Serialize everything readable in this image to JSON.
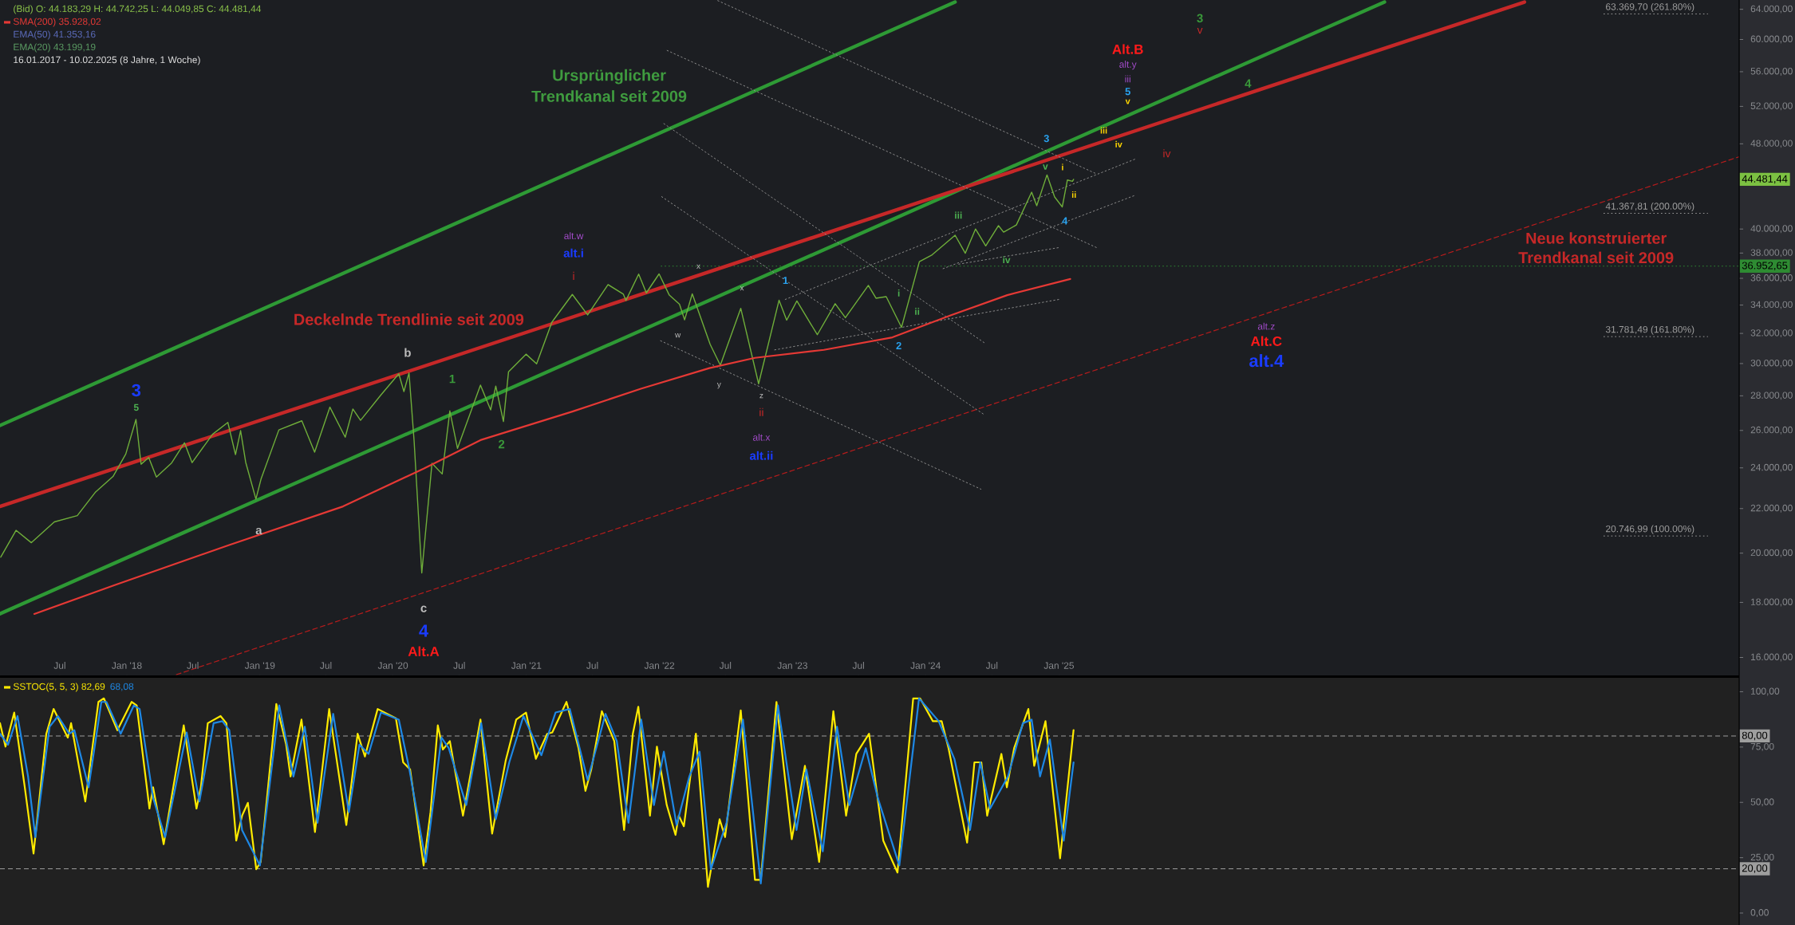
{
  "chart_data": [
    {
      "type": "line",
      "title": "(Bid)  O: 44.183,29  H: 44.742,25  L: 44.049,85  C: 44.481,44",
      "subtitle": "16.01.2017 - 10.02.2025  (8 Jahre, 1 Woche)",
      "xlim": [
        "2017-01-18",
        "2030-02-10"
      ],
      "ylim": [
        15400,
        65300
      ],
      "log": true,
      "legend": "top left",
      "xticks": [
        {
          "value": "2017-07-01",
          "label": "Jul"
        },
        {
          "value": "2018-01-01",
          "label": "Jan '18"
        },
        {
          "value": "2018-07-01",
          "label": "Jul"
        },
        {
          "value": "2019-01-01",
          "label": "Jan '19"
        },
        {
          "value": "2019-07-01",
          "label": "Jul"
        },
        {
          "value": "2020-01-01",
          "label": "Jan '20"
        },
        {
          "value": "2020-07-01",
          "label": "Jul"
        },
        {
          "value": "2021-01-01",
          "label": "Jan '21"
        },
        {
          "value": "2021-07-01",
          "label": "Jul"
        },
        {
          "value": "2022-01-01",
          "label": "Jan '22"
        },
        {
          "value": "2022-07-01",
          "label": "Jul"
        },
        {
          "value": "2023-01-01",
          "label": "Jan '23"
        },
        {
          "value": "2023-07-01",
          "label": "Jul"
        },
        {
          "value": "2024-01-01",
          "label": "Jan '24"
        },
        {
          "value": "2024-07-01",
          "label": "Jul"
        },
        {
          "value": "2025-01-01",
          "label": "Jan '25"
        }
      ],
      "yticks": [
        {
          "value": 16000,
          "label": "16.000,00"
        },
        {
          "value": 18000,
          "label": "18.000,00"
        },
        {
          "value": 20000,
          "label": "20.000,00"
        },
        {
          "value": 22000,
          "label": "22.000,00"
        },
        {
          "value": 24000,
          "label": "24.000,00"
        },
        {
          "value": 26000,
          "label": "26.000,00"
        },
        {
          "value": 28000,
          "label": "28.000,00"
        },
        {
          "value": 30000,
          "label": "30.000,00"
        },
        {
          "value": 32000,
          "label": "32.000,00"
        },
        {
          "value": 34000,
          "label": "34.000,00"
        },
        {
          "value": 36000,
          "label": "36.000,00"
        },
        {
          "value": 38000,
          "label": "38.000,00"
        },
        {
          "value": 40000,
          "label": "40.000,00"
        },
        {
          "value": 48000,
          "label": "48.000,00"
        },
        {
          "value": 52000,
          "label": "52.000,00"
        },
        {
          "value": 56000,
          "label": "56.000,00"
        },
        {
          "value": 60000,
          "label": "60.000,00"
        },
        {
          "value": 64000,
          "label": "64.000,00"
        }
      ],
      "series": [
        {
          "color": "#6fae3a",
          "x": [
            "2017-01-20",
            "2017-03-03",
            "2017-04-14",
            "2017-06-16",
            "2017-08-18",
            "2017-10-06",
            "2017-11-24",
            "2017-12-29",
            "2018-01-26",
            "2018-02-09",
            "2018-03-02",
            "2018-03-23",
            "2018-05-04",
            "2018-06-08",
            "2018-06-29",
            "2018-08-24",
            "2018-10-05",
            "2018-10-26",
            "2018-11-09",
            "2018-11-23",
            "2018-12-21",
            "2019-01-04",
            "2019-02-22",
            "2019-04-26",
            "2019-05-31",
            "2019-07-12",
            "2019-08-23",
            "2019-09-13",
            "2019-10-04",
            "2019-11-29",
            "2020-01-17",
            "2020-01-31",
            "2020-02-14",
            "2020-02-28",
            "2020-03-20",
            "2020-04-17",
            "2020-05-15",
            "2020-06-05",
            "2020-06-26",
            "2020-08-28",
            "2020-09-25",
            "2020-10-09",
            "2020-10-30",
            "2020-11-13",
            "2020-12-31",
            "2021-01-29",
            "2021-03-12",
            "2021-05-07",
            "2021-06-18",
            "2021-08-13",
            "2021-09-24",
            "2021-10-01",
            "2021-11-05",
            "2021-11-26",
            "2021-12-31",
            "2022-01-28",
            "2022-02-25",
            "2022-03-11",
            "2022-04-01",
            "2022-05-20",
            "2022-06-17",
            "2022-08-12",
            "2022-09-30",
            "2022-11-25",
            "2022-12-16",
            "2023-01-13",
            "2023-03-10",
            "2023-04-28",
            "2023-05-26",
            "2023-07-28",
            "2023-08-18",
            "2023-09-15",
            "2023-10-27",
            "2023-12-15",
            "2024-01-19",
            "2024-03-22",
            "2024-04-19",
            "2024-05-17",
            "2024-06-14",
            "2024-07-19",
            "2024-08-02",
            "2024-09-06",
            "2024-10-18",
            "2024-11-01",
            "2024-11-29",
            "2024-12-20",
            "2025-01-10",
            "2025-01-24",
            "2025-02-07",
            "2025-02-10"
          ],
          "values": [
            19830,
            21000,
            20450,
            21380,
            21670,
            22770,
            23560,
            24720,
            26620,
            24190,
            24540,
            23530,
            24260,
            25320,
            24270,
            25790,
            26450,
            24690,
            25990,
            24290,
            22450,
            23430,
            26030,
            26540,
            24820,
            27330,
            25630,
            27220,
            26570,
            28050,
            29350,
            28260,
            29400,
            25410,
            19170,
            24240,
            23690,
            27110,
            25020,
            28650,
            27170,
            28590,
            26500,
            29480,
            30610,
            29980,
            32780,
            34780,
            33290,
            35520,
            34800,
            34330,
            36330,
            34900,
            36340,
            34730,
            34060,
            32940,
            34820,
            31260,
            29890,
            33760,
            28730,
            34350,
            32920,
            34300,
            31910,
            34100,
            33090,
            35460,
            34500,
            34620,
            32420,
            37310,
            37860,
            39480,
            37990,
            40000,
            38590,
            40290,
            39740,
            40350,
            43280,
            42050,
            44910,
            42840,
            41940,
            44420,
            44300,
            44481.44
          ]
        },
        {
          "name": "SMA(200)  35.928,02",
          "color": "#e53935",
          "x": [
            "2017-04-22",
            "2017-11-27",
            "2018-10-07",
            "2019-08-17",
            "2020-03-25",
            "2020-08-28",
            "2021-05-07",
            "2021-11-11",
            "2022-05-18",
            "2022-09-20",
            "2023-03-28",
            "2023-10-02",
            "2024-03-08",
            "2024-08-12",
            "2025-02-01"
          ],
          "values": [
            17560,
            18670,
            20340,
            22100,
            23960,
            25470,
            27070,
            28430,
            29710,
            30370,
            30890,
            31730,
            33240,
            34730,
            35950
          ]
        },
        {
          "color": "#2e9a35",
          "x": [
            "2017-01-18",
            "2024-03-22"
          ],
          "values": [
            26280,
            65000
          ]
        },
        {
          "color": "#2e9a35",
          "x": [
            "2017-01-18",
            "2027-06-13"
          ],
          "values": [
            17570,
            65000
          ]
        },
        {
          "color": "#c62828",
          "x": [
            "2017-01-18",
            "2028-07-01"
          ],
          "values": [
            22100,
            65000
          ]
        },
        {
          "color": "#b71c1c",
          "line_style": "dashed",
          "x": [
            "2018-05-17",
            "2030-02-10"
          ],
          "values": [
            15424,
            46690
          ]
        },
        {
          "color": "#8a8a8a",
          "line_style": "dotted",
          "x": [
            "2022-06-10",
            "2025-04-14"
          ],
          "values": [
            65200,
            45010
          ]
        },
        {
          "color": "#8a8a8a",
          "line_style": "dotted",
          "x": [
            "2022-01-22",
            "2025-04-14"
          ],
          "values": [
            58610,
            38450
          ]
        },
        {
          "color": "#8a8a8a",
          "line_style": "dotted",
          "x": [
            "2022-01-13",
            "2024-06-11"
          ],
          "values": [
            50120,
            31350
          ]
        },
        {
          "color": "#8a8a8a",
          "line_style": "dotted",
          "x": [
            "2022-01-07",
            "2024-06-11"
          ],
          "values": [
            42870,
            26880
          ]
        },
        {
          "color": "#8a8a8a",
          "line_style": "dotted",
          "x": [
            "2022-01-04",
            "2024-06-01"
          ],
          "values": [
            31500,
            22930
          ]
        },
        {
          "color": "#8a8a8a",
          "line_style": "dotted",
          "x": [
            "2022-11-13",
            "2025-01-01"
          ],
          "values": [
            30890,
            34410
          ]
        },
        {
          "color": "#8a8a8a",
          "line_style": "dotted",
          "x": [
            "2022-12-12",
            "2025-07-30"
          ],
          "values": [
            34410,
            46470
          ]
        },
        {
          "color": "#8a8a8a",
          "line_style": "dotted",
          "x": [
            "2024-02-18",
            "2025-07-27"
          ],
          "values": [
            36750,
            42970
          ]
        },
        {
          "color": "#8a8a8a",
          "line_style": "dotted",
          "x": [
            "2024-04-01",
            "2025-01-01"
          ],
          "values": [
            37110,
            38450
          ]
        }
      ],
      "ref_lines": [
        {
          "axis": "y",
          "value": 63369.7,
          "label": "63.369,70 (261.80%)",
          "color": "#9e9e9e",
          "line_style": "dotted"
        },
        {
          "axis": "y",
          "value": 41367.81,
          "label": "41.367,81 (200.00%)",
          "color": "#9e9e9e",
          "line_style": "dotted"
        },
        {
          "axis": "y",
          "value": 31781.49,
          "label": "31.781,49 (161.80%)",
          "color": "#9e9e9e",
          "line_style": "dotted"
        },
        {
          "axis": "y",
          "value": 20746.99,
          "label": "20.746,99 (100.00%)",
          "color": "#9e9e9e",
          "line_style": "dotted"
        },
        {
          "axis": "y",
          "value": 36952.65,
          "label": "36.952,65",
          "color": "#2e8b32",
          "line_style": "dotted"
        }
      ],
      "annotations": [
        "EMA(50)  41.353,16",
        "EMA(20)  43.199,19",
        "3",
        "5",
        "a",
        "b",
        "c",
        "4",
        "Alt.A",
        "1",
        "2",
        "alt.w",
        "alt.i",
        "i",
        "x",
        "w",
        "x",
        "y",
        "z",
        "ii",
        "alt.x",
        "alt.ii",
        "1",
        "2",
        "i",
        "ii",
        "iii",
        "iv",
        "v",
        "3",
        "i",
        "ii",
        "4",
        "iii",
        "iv",
        "iv",
        "Alt.B",
        "alt.y",
        "iii",
        "5",
        "v",
        "3",
        "v",
        "4",
        "alt.z",
        "Alt.C",
        "alt.4",
        "Ursprünglicher",
        "Trendkanal seit 2009",
        "Deckelnde Trendlinie seit 2009",
        "Neue konstruierter",
        "Trendkanal seit 2009",
        "44.481,44"
      ]
    },
    {
      "type": "line",
      "xlim": [
        "2017-01-18",
        "2030-02-10"
      ],
      "ylim": [
        -5.4,
        106.3
      ],
      "tick_labels": "y",
      "legend": "top left",
      "yticks": [
        {
          "value": 0,
          "label": "0,00"
        },
        {
          "value": 25,
          "label": "25,00"
        },
        {
          "value": 50,
          "label": "50,00"
        },
        {
          "value": 75,
          "label": "75,00"
        },
        {
          "value": 100,
          "label": "100,00"
        }
      ],
      "series": [
        {
          "name": "SSTOC(5, 5, 3)  82,69",
          "color": "#ffeb00",
          "x": [
            "2017-01-18",
            "2017-02-02",
            "2017-02-26",
            "2017-03-27",
            "2017-04-20",
            "2017-05-25",
            "2017-06-14",
            "2017-07-23",
            "2017-08-01",
            "2017-09-09",
            "2017-10-15",
            "2017-10-30",
            "2017-12-06",
            "2018-01-14",
            "2018-01-28",
            "2018-03-04",
            "2018-03-14",
            "2018-04-12",
            "2018-06-06",
            "2018-07-11",
            "2018-07-23",
            "2018-08-11",
            "2018-09-15",
            "2018-10-01",
            "2018-10-28",
            "2018-11-13",
            "2018-11-29",
            "2018-12-22",
            "2019-01-03",
            "2019-02-15",
            "2019-03-14",
            "2019-03-26",
            "2019-04-25",
            "2019-06-01",
            "2019-07-10",
            "2019-08-26",
            "2019-09-26",
            "2019-10-16",
            "2019-11-20",
            "2020-01-09",
            "2020-01-29",
            "2020-02-17",
            "2020-03-25",
            "2020-04-13",
            "2020-05-03",
            "2020-05-17",
            "2020-06-05",
            "2020-07-11",
            "2020-08-28",
            "2020-09-29",
            "2020-11-05",
            "2020-12-04",
            "2020-12-31",
            "2021-01-27",
            "2021-02-27",
            "2021-03-13",
            "2021-04-21",
            "2021-05-24",
            "2021-06-12",
            "2021-06-28",
            "2021-07-27",
            "2021-08-30",
            "2021-09-26",
            "2021-10-20",
            "2021-11-04",
            "2021-12-06",
            "2021-12-25",
            "2022-01-21",
            "2022-02-14",
            "2022-02-23",
            "2022-03-09",
            "2022-04-11",
            "2022-05-14",
            "2022-06-15",
            "2022-06-30",
            "2022-08-12",
            "2022-09-20",
            "2022-10-06",
            "2022-11-18",
            "2022-12-30",
            "2023-02-04",
            "2023-03-15",
            "2023-04-23",
            "2023-05-28",
            "2023-06-25",
            "2023-07-30",
            "2023-09-07",
            "2023-10-16",
            "2023-11-28",
            "2023-12-17",
            "2024-01-21",
            "2024-02-14",
            "2024-03-04",
            "2024-04-24",
            "2024-05-14",
            "2024-06-02",
            "2024-06-18",
            "2024-07-27",
            "2024-08-11",
            "2024-08-31",
            "2024-10-09",
            "2024-10-25",
            "2024-11-25",
            "2025-01-04",
            "2025-02-10"
          ],
          "values": [
            85.8,
            75.2,
            90.6,
            56.8,
            26.9,
            81.0,
            92.2,
            79.3,
            85.8,
            50.4,
            95.4,
            97.0,
            82.6,
            95.4,
            93.8,
            47.2,
            56.8,
            31.1,
            84.8,
            47.2,
            56.8,
            85.8,
            89.0,
            85.8,
            32.7,
            44.0,
            49.8,
            19.8,
            23.1,
            94.5,
            76.1,
            61.7,
            87.4,
            36.6,
            92.2,
            39.8,
            81.0,
            70.7,
            92.2,
            88.0,
            68.1,
            64.9,
            21.5,
            45.6,
            84.8,
            73.9,
            77.7,
            44.0,
            87.4,
            35.9,
            68.7,
            87.4,
            90.6,
            69.7,
            81.0,
            81.6,
            95.4,
            74.5,
            55.2,
            64.9,
            91.2,
            77.7,
            37.5,
            81.0,
            93.2,
            44.0,
            75.2,
            48.8,
            35.3,
            44.0,
            39.2,
            81.0,
            11.8,
            42.4,
            34.3,
            91.6,
            15.0,
            15.0,
            95.4,
            33.4,
            66.5,
            23.1,
            91.2,
            44.0,
            71.9,
            81.0,
            32.7,
            18.3,
            97.0,
            97.0,
            86.7,
            86.7,
            74.5,
            31.8,
            68.1,
            68.1,
            44.0,
            71.9,
            56.8,
            74.5,
            92.2,
            66.5,
            86.7,
            24.7,
            82.7
          ]
        },
        {
          "name": "68,08",
          "color": "#1e88e5",
          "x": [
            "2017-01-18",
            "2017-02-09",
            "2017-03-07",
            "2017-04-05",
            "2017-04-25",
            "2017-06-03",
            "2017-06-26",
            "2017-07-27",
            "2017-08-10",
            "2017-09-18",
            "2017-10-23",
            "2017-11-06",
            "2017-12-15",
            "2018-01-20",
            "2018-02-05",
            "2018-03-14",
            "2018-04-16",
            "2018-06-14",
            "2018-07-19",
            "2018-08-27",
            "2018-09-20",
            "2018-10-09",
            "2018-11-13",
            "2019-01-01",
            "2019-02-23",
            "2019-04-03",
            "2019-05-04",
            "2019-06-08",
            "2019-07-21",
            "2019-09-02",
            "2019-10-01",
            "2019-10-26",
            "2019-11-29",
            "2020-01-17",
            "2020-02-15",
            "2020-03-31",
            "2020-05-13",
            "2020-06-02",
            "2020-07-20",
            "2020-08-30",
            "2020-10-09",
            "2020-11-15",
            "2020-12-24",
            "2021-02-11",
            "2021-03-22",
            "2021-04-30",
            "2021-06-18",
            "2021-08-06",
            "2021-09-06",
            "2021-10-08",
            "2021-11-12",
            "2021-12-17",
            "2022-01-13",
            "2022-02-17",
            "2022-03-24",
            "2022-04-21",
            "2022-05-22",
            "2022-07-04",
            "2022-08-18",
            "2022-10-06",
            "2022-11-22",
            "2023-01-12",
            "2023-02-08",
            "2023-03-25",
            "2023-05-03",
            "2023-06-06",
            "2023-07-21",
            "2023-08-23",
            "2023-10-21",
            "2023-12-14",
            "2024-02-06",
            "2024-03-20",
            "2024-05-02",
            "2024-05-30",
            "2024-06-26",
            "2024-08-14",
            "2024-09-24",
            "2024-10-18",
            "2024-11-10",
            "2024-12-07",
            "2025-01-14",
            "2025-02-10"
          ],
          "values": [
            81.0,
            76.1,
            89.0,
            61.7,
            34.3,
            84.2,
            89.0,
            81.0,
            82.6,
            56.8,
            95.4,
            95.4,
            81.0,
            93.8,
            92.2,
            52.0,
            34.3,
            81.6,
            50.4,
            85.8,
            86.7,
            82.6,
            37.5,
            21.5,
            93.8,
            61.7,
            84.2,
            40.8,
            90.0,
            45.6,
            76.1,
            71.9,
            90.6,
            87.4,
            64.9,
            23.1,
            79.3,
            74.5,
            48.8,
            85.8,
            42.4,
            68.1,
            89.0,
            71.3,
            90.6,
            92.2,
            60.1,
            90.0,
            77.7,
            40.8,
            87.4,
            48.8,
            72.9,
            39.8,
            61.7,
            72.9,
            19.8,
            40.8,
            87.4,
            13.4,
            93.8,
            37.5,
            64.9,
            27.9,
            84.2,
            48.8,
            74.5,
            52.0,
            21.5,
            97.0,
            86.7,
            69.7,
            37.5,
            68.1,
            47.2,
            61.7,
            85.8,
            87.4,
            61.7,
            78.4,
            32.7,
            68.1
          ]
        }
      ],
      "ref_lines": [
        {
          "axis": "y",
          "value": 80,
          "label": "80,00",
          "color": "#9e9e9e",
          "line_style": "dashed"
        },
        {
          "axis": "y",
          "value": 20,
          "label": "20,00",
          "color": "#9e9e9e",
          "line_style": "dashed"
        }
      ]
    }
  ]
}
